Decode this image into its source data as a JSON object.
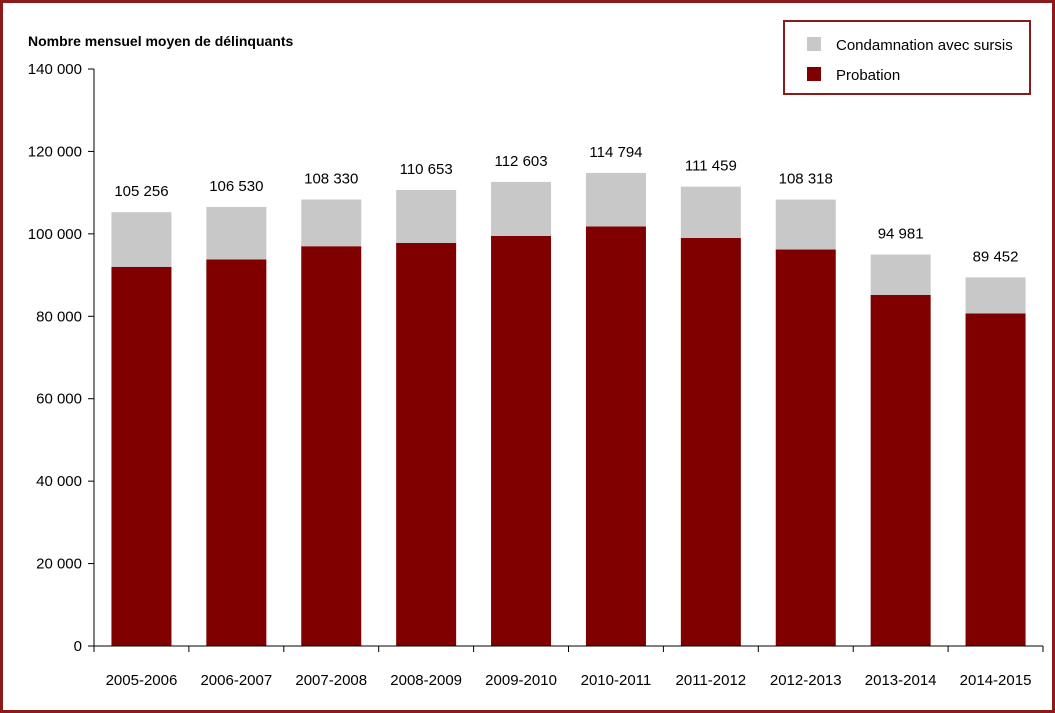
{
  "chart_data": {
    "type": "bar",
    "stacked": true,
    "title": "Nombre mensuel moyen de délinquants",
    "xlabel": "",
    "ylabel": "",
    "categories": [
      "2005-2006",
      "2006-2007",
      "2007-2008",
      "2008-2009",
      "2009-2010",
      "2010-2011",
      "2011-2012",
      "2012-2013",
      "2013-2014",
      "2014-2015"
    ],
    "series": [
      {
        "name": "Probation",
        "color": "#800000",
        "values": [
          92000,
          93800,
          97000,
          97800,
          99500,
          101800,
          99000,
          96200,
          85200,
          80700
        ]
      },
      {
        "name": "Condamnation avec sursis",
        "color": "#c8c8c8",
        "values": [
          13256,
          12730,
          11330,
          12853,
          13103,
          12994,
          12459,
          12118,
          9781,
          8752
        ]
      }
    ],
    "totals_labels": [
      "105 256",
      "106 530",
      "108 330",
      "110 653",
      "112 603",
      "114 794",
      "111 459",
      "108 318",
      "94 981",
      "89 452"
    ],
    "totals": [
      105256,
      106530,
      108330,
      110653,
      112603,
      114794,
      111459,
      108318,
      94981,
      89452
    ],
    "ylim": [
      0,
      140000
    ],
    "yticks": [
      0,
      20000,
      40000,
      60000,
      80000,
      100000,
      120000,
      140000
    ],
    "ytick_labels": [
      "0",
      "20 000",
      "40 000",
      "60 000",
      "80 000",
      "100 000",
      "120 000",
      "140 000"
    ],
    "grid": false,
    "legend_position": "top-right",
    "legend": [
      {
        "label": "Condamnation avec sursis",
        "color": "#c8c8c8"
      },
      {
        "label": "Probation",
        "color": "#800000"
      }
    ]
  }
}
